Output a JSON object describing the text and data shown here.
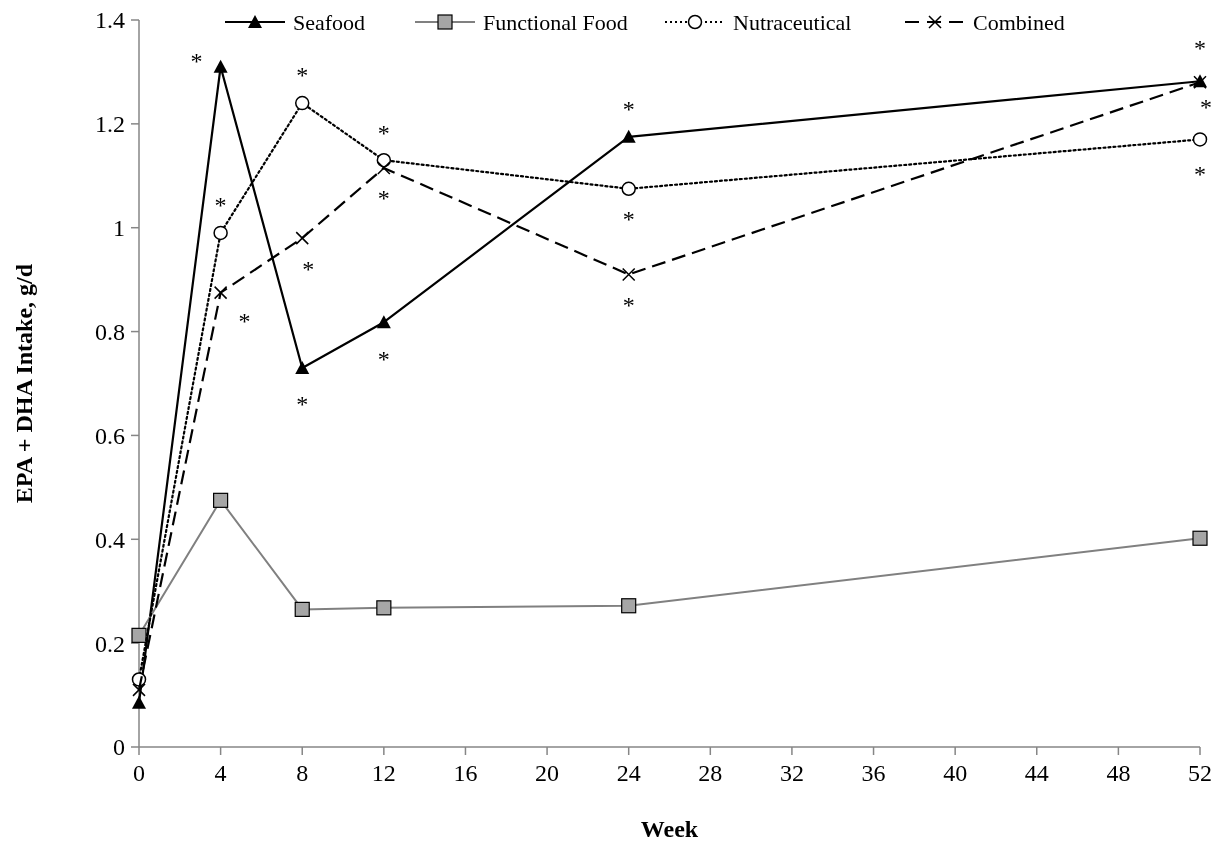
{
  "chart_data": {
    "type": "line",
    "xlabel": "Week",
    "ylabel": "EPA + DHA Intake, g/d",
    "x": [
      0,
      4,
      8,
      12,
      24,
      52
    ],
    "xlim": [
      0,
      52
    ],
    "xticks": [
      0,
      4,
      8,
      12,
      16,
      20,
      24,
      28,
      32,
      36,
      40,
      44,
      48,
      52
    ],
    "ylim": [
      0,
      1.4
    ],
    "yticks": [
      0,
      0.2,
      0.4,
      0.6,
      0.8,
      1,
      1.2,
      1.4
    ],
    "grid": false,
    "legend": "top",
    "series": [
      {
        "name": "Seafood",
        "color": "#000000",
        "marker": "triangle",
        "line_style": "solid",
        "values": [
          0.085,
          1.31,
          0.73,
          0.818,
          1.175,
          1.282
        ]
      },
      {
        "name": "Functional Food",
        "color": "#808080",
        "marker": "square",
        "line_style": "solid",
        "values": [
          0.215,
          0.475,
          0.265,
          0.268,
          0.272,
          0.402
        ]
      },
      {
        "name": "Nutraceutical",
        "color": "#000000",
        "marker": "circle",
        "line_style": "dotted",
        "values": [
          0.13,
          0.99,
          1.24,
          1.13,
          1.075,
          1.17
        ]
      },
      {
        "name": "Combined",
        "color": "#000000",
        "marker": "cross",
        "line_style": "dashed",
        "values": [
          0.11,
          0.875,
          0.98,
          1.115,
          0.91,
          1.28
        ]
      }
    ],
    "annotations": [
      {
        "text": "*",
        "x": 4,
        "y": 1.31
      },
      {
        "text": "*",
        "x": 8,
        "y": 0.73
      },
      {
        "text": "*",
        "x": 12,
        "y": 0.818
      },
      {
        "text": "*",
        "x": 24,
        "y": 1.175
      },
      {
        "text": "*",
        "x": 52,
        "y": 1.282
      },
      {
        "text": "*",
        "x": 4,
        "y": 0.99
      },
      {
        "text": "*",
        "x": 8,
        "y": 1.24
      },
      {
        "text": "*",
        "x": 12,
        "y": 1.13
      },
      {
        "text": "*",
        "x": 24,
        "y": 1.075
      },
      {
        "text": "*",
        "x": 52,
        "y": 1.17
      },
      {
        "text": "*",
        "x": 4,
        "y": 0.875
      },
      {
        "text": "*",
        "x": 8,
        "y": 0.98
      },
      {
        "text": "*",
        "x": 12,
        "y": 1.115
      },
      {
        "text": "*",
        "x": 24,
        "y": 0.91
      },
      {
        "text": "*",
        "x": 52,
        "y": 1.28
      }
    ]
  }
}
